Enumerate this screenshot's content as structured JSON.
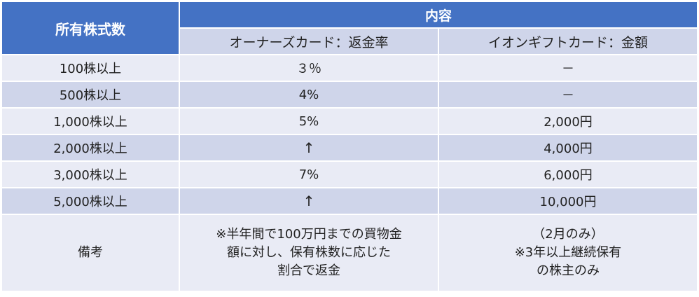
{
  "header": {
    "shares_label": "所有株式数",
    "content_label": "内容",
    "col_owner_card": "オーナーズカード：返金率",
    "col_aeon_gift": "イオンギフトカード：金額"
  },
  "rows": [
    {
      "shares": "100株以上",
      "refund": "３％",
      "gift": "－"
    },
    {
      "shares": "500株以上",
      "refund": "4%",
      "gift": "－"
    },
    {
      "shares": "1,000株以上",
      "refund": "5%",
      "gift": "2,000円"
    },
    {
      "shares": "2,000株以上",
      "refund": "↑",
      "gift": "4,000円"
    },
    {
      "shares": "3,000株以上",
      "refund": "7%",
      "gift": "6,000円"
    },
    {
      "shares": "5,000株以上",
      "refund": "↑",
      "gift": "10,000円"
    }
  ],
  "remarks": {
    "label": "備考",
    "refund_lines": [
      "※半年間で100万円までの買物金",
      "額に対し、保有株数に応じた",
      "割合で返金"
    ],
    "gift_lines": [
      "（2月のみ）",
      "※3年以上継続保有",
      "の株主のみ"
    ]
  },
  "colors": {
    "header_blue": "#4472c4",
    "band_dark": "#cfd5ea",
    "band_light": "#e9ebf5"
  }
}
